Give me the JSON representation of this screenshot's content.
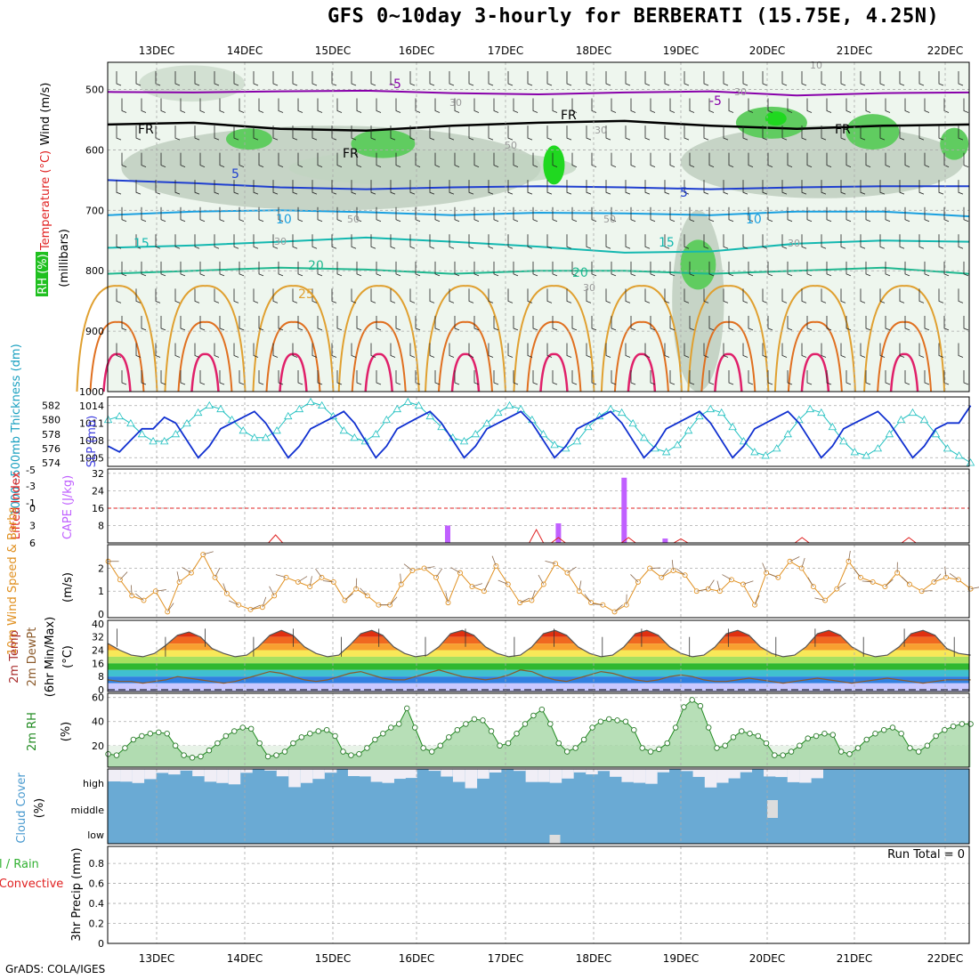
{
  "title": "GFS 0~10day 3-hourly for BERBERATI (15.75E, 4.25N)",
  "credit": "GrADS: COLA/IGES",
  "run_total": "Run Total = 0",
  "dates": [
    "13DEC",
    "14DEC",
    "15DEC",
    "16DEC",
    "17DEC",
    "18DEC",
    "19DEC",
    "20DEC",
    "21DEC",
    "22DEC"
  ],
  "colors": {
    "frame": "#000000",
    "grid": "#aaaaaa",
    "temp_neg": "#8800aa",
    "temp_0": "#000000",
    "temp_5": "#1f3fd0",
    "temp_10": "#1aa0e0",
    "temp_15": "#14b8b0",
    "temp_20": "#20b890",
    "temp_25": "#e0a030",
    "slp": "#1030d0",
    "thick": "#20c0c0",
    "cape": "#c060ff",
    "lifted": "#e02020",
    "wind": "#e09020",
    "temp2m": "#555555",
    "rh2m": "#228b22",
    "cloud": "#6aaad4"
  },
  "panel_labels": {
    "wind": "Wind (m/s)",
    "temperature": "Temperature (°C)",
    "rh": "RH (%)",
    "millibars": "(millibars)",
    "thickness": "1000~500mb Thickness (dm)",
    "slp": "SLP (mb)",
    "lifted": "Lifted Index",
    "cape": "CAPE (J/kg)",
    "wind10": "10m Wind Speed & Barbs",
    "wind10_units": "(m/s)",
    "temp2m": "2m Temp",
    "dewpt": "2m DewPt",
    "minmax": "(6hr Min/Max)",
    "temp_units": "(°C)",
    "rh2m": "2m RH",
    "rh_units": "(%)",
    "cloud": "Cloud Cover",
    "cloud_units": "(%)",
    "precip1": "Total / Rain",
    "precip2": "Convective",
    "precip3": "3hr Precip (mm)"
  },
  "contour_labels": {
    "fr": "FR",
    "m5": "-5",
    "p5": "5",
    "p10": "10",
    "p15": "15",
    "p20": "20",
    "p25": "25",
    "r30": "30",
    "r50": "50",
    "r10": "10"
  },
  "chart_data": [
    {
      "type": "heatmap",
      "name": "pressure-cross-section",
      "ylabel": "(millibars)",
      "y_ticks": [
        "500",
        "600",
        "700",
        "800",
        "900",
        "1000"
      ],
      "isotherm_levels_mb": {
        "-5": [
          504,
          505,
          503,
          502,
          506,
          508,
          505,
          503,
          510,
          506,
          505
        ],
        "0": [
          558,
          555,
          565,
          568,
          560,
          555,
          552,
          560,
          565,
          560,
          558
        ],
        "5": [
          650,
          655,
          662,
          665,
          662,
          660,
          662,
          665,
          662,
          660,
          660
        ],
        "10": [
          708,
          702,
          700,
          703,
          708,
          704,
          705,
          708,
          702,
          702,
          710
        ],
        "15": [
          762,
          758,
          752,
          745,
          752,
          760,
          770,
          768,
          755,
          750,
          752
        ],
        "20": [
          805,
          800,
          795,
          798,
          805,
          800,
          800,
          805,
          800,
          795,
          805
        ]
      },
      "x_ticks": [
        "13DEC",
        "14DEC",
        "15DEC",
        "16DEC",
        "17DEC",
        "18DEC",
        "19DEC",
        "20DEC",
        "21DEC",
        "22DEC"
      ]
    },
    {
      "type": "line",
      "name": "slp-thickness",
      "y_ticks_left": [
        "574",
        "576",
        "578",
        "580",
        "582"
      ],
      "y_ticks_right": [
        "1005",
        "1008",
        "1011",
        "1014"
      ],
      "series": [
        {
          "name": "SLP (mb)",
          "values": [
            1007,
            1006,
            1008,
            1010,
            1010,
            1012,
            1011,
            1008,
            1005,
            1007,
            1010,
            1011,
            1012,
            1013,
            1011,
            1008,
            1005,
            1007,
            1010,
            1011,
            1012,
            1013,
            1011,
            1008,
            1005,
            1007,
            1010,
            1011,
            1012,
            1013,
            1011,
            1008,
            1005,
            1007,
            1010,
            1011,
            1012,
            1013,
            1011,
            1008,
            1005,
            1007,
            1010,
            1011,
            1012,
            1013,
            1011,
            1008,
            1005,
            1007,
            1010,
            1011,
            1012,
            1013,
            1011,
            1008,
            1005,
            1007,
            1010,
            1011,
            1012,
            1013,
            1011,
            1008,
            1005,
            1007,
            1010,
            1011,
            1012,
            1013,
            1011,
            1008,
            1005,
            1007,
            1010,
            1011,
            1011,
            1014
          ]
        },
        {
          "name": "Thickness (dm)",
          "values": [
            580,
            580.5,
            579.5,
            578,
            577,
            577,
            578,
            579.5,
            581,
            582,
            581.5,
            580,
            578.5,
            577.5,
            577.5,
            578.5,
            580.5,
            581.5,
            582.5,
            582,
            580.5,
            578.5,
            577.5,
            577,
            578,
            580,
            581.5,
            582.5,
            582,
            580.5,
            579,
            577.5,
            577,
            578,
            579.5,
            581,
            582,
            581.5,
            580,
            578,
            576.5,
            576,
            577,
            579,
            580.5,
            581.5,
            581,
            579.5,
            577.5,
            576,
            575.5,
            576.5,
            578.5,
            580.5,
            581.5,
            581,
            579,
            577,
            575.5,
            575,
            576,
            578,
            580,
            581.5,
            581,
            579,
            577,
            575.5,
            575,
            576,
            578,
            580,
            581,
            580,
            578,
            576,
            575,
            574
          ]
        }
      ]
    },
    {
      "type": "bar",
      "name": "cape-lifted-index",
      "y_ticks_left": [
        "-5",
        "-3",
        "-1",
        "0",
        "3",
        "6"
      ],
      "y_ticks_right": [
        "32",
        "24",
        "16",
        "8"
      ],
      "cape_bars": [
        {
          "date_index": 3.35,
          "value": 8
        },
        {
          "date_index": 4.6,
          "value": 9
        },
        {
          "date_index": 5.35,
          "value": 30
        },
        {
          "date_index": 5.82,
          "value": 2
        }
      ],
      "lifted_index_reference": 0
    },
    {
      "type": "line",
      "name": "wind10m",
      "y_ticks": [
        "0",
        "1",
        "2"
      ],
      "series": [
        {
          "name": "10m Wind Speed",
          "values": [
            2.3,
            1.5,
            0.8,
            0.6,
            1.0,
            0.1,
            1.4,
            1.8,
            2.6,
            1.6,
            0.9,
            0.4,
            0.2,
            0.3,
            0.8,
            1.6,
            1.4,
            1.2,
            1.6,
            1.4,
            0.6,
            1.1,
            0.8,
            0.4,
            0.4,
            1.3,
            1.9,
            2.0,
            1.6,
            0.5,
            1.8,
            1.2,
            1.0,
            2.1,
            1.3,
            0.5,
            0.6,
            1.3,
            2.2,
            1.8,
            1.0,
            0.5,
            0.4,
            0.1,
            0.4,
            1.4,
            2.0,
            1.6,
            1.9,
            1.7,
            1.0,
            1.1,
            1.0,
            1.5,
            1.3,
            0.4,
            1.8,
            1.6,
            2.3,
            2.0,
            1.2,
            0.6,
            1.1,
            2.3,
            1.6,
            1.4,
            1.2,
            1.8,
            1.3,
            1.0,
            1.4,
            1.6,
            1.5,
            1.1
          ]
        }
      ]
    },
    {
      "type": "area",
      "name": "temp2m",
      "y_ticks": [
        "0",
        "8",
        "16",
        "24",
        "32",
        "40"
      ],
      "series": [
        {
          "name": "2m Temp",
          "values": [
            28,
            24,
            21,
            20,
            22,
            27,
            33,
            35,
            32,
            25,
            22,
            20,
            21,
            26,
            33,
            36,
            33,
            26,
            22,
            20,
            21,
            27,
            34,
            36,
            33,
            26,
            22,
            20,
            21,
            26,
            34,
            36,
            33,
            26,
            22,
            20,
            21,
            26,
            34,
            36,
            33,
            26,
            22,
            20,
            21,
            26,
            34,
            36,
            33,
            26,
            22,
            20,
            21,
            26,
            34,
            36,
            33,
            26,
            22,
            20,
            21,
            26,
            34,
            36,
            33,
            26,
            22,
            20,
            21,
            26,
            34,
            36,
            33,
            25,
            22,
            21
          ]
        },
        {
          "name": "2m DewPt",
          "values": [
            6,
            5,
            5,
            4,
            5,
            6,
            8,
            7,
            6,
            5,
            4,
            5,
            7,
            9,
            11,
            10,
            8,
            6,
            5,
            6,
            8,
            10,
            11,
            9,
            7,
            6,
            6,
            8,
            10,
            12,
            10,
            8,
            7,
            6,
            7,
            9,
            12,
            11,
            8,
            6,
            5,
            7,
            9,
            11,
            10,
            8,
            6,
            5,
            6,
            8,
            9,
            8,
            6,
            5,
            5,
            6,
            7,
            6,
            5,
            4,
            5,
            6,
            7,
            6,
            5,
            4,
            5,
            6,
            7,
            6,
            5,
            4,
            5,
            6,
            6,
            6
          ]
        }
      ]
    },
    {
      "type": "area",
      "name": "rh2m",
      "y_ticks": [
        "20",
        "40",
        "60"
      ],
      "series": [
        {
          "name": "2m RH",
          "values": [
            13,
            12,
            18,
            25,
            28,
            30,
            31,
            30,
            20,
            12,
            10,
            11,
            16,
            22,
            28,
            32,
            35,
            34,
            22,
            11,
            12,
            15,
            22,
            27,
            30,
            32,
            33,
            28,
            15,
            12,
            13,
            18,
            25,
            30,
            35,
            38,
            51,
            35,
            18,
            15,
            20,
            27,
            33,
            38,
            42,
            41,
            32,
            20,
            22,
            30,
            38,
            45,
            50,
            38,
            22,
            15,
            18,
            25,
            35,
            40,
            42,
            41,
            40,
            33,
            18,
            15,
            17,
            22,
            35,
            52,
            58,
            53,
            35,
            18,
            20,
            27,
            32,
            30,
            28,
            22,
            12,
            12,
            15,
            20,
            26,
            28,
            30,
            29,
            15,
            13,
            18,
            25,
            30,
            33,
            35,
            30,
            18,
            15,
            20,
            28,
            33,
            36,
            38,
            38
          ]
        }
      ]
    },
    {
      "type": "heatmap",
      "name": "cloud-cover",
      "y_ticks": [
        "high",
        "middle",
        "low"
      ],
      "x_ticks": [
        "13DEC",
        "14DEC",
        "15DEC",
        "16DEC",
        "17DEC",
        "18DEC",
        "19DEC",
        "20DEC",
        "21DEC",
        "22DEC"
      ]
    },
    {
      "type": "bar",
      "name": "precip",
      "y_ticks": [
        "0",
        "0.2",
        "0.4",
        "0.6",
        "0.8"
      ],
      "values": [],
      "x_ticks": [
        "13DEC",
        "14DEC",
        "15DEC",
        "16DEC",
        "17DEC",
        "18DEC",
        "19DEC",
        "20DEC",
        "21DEC",
        "22DEC"
      ]
    }
  ]
}
